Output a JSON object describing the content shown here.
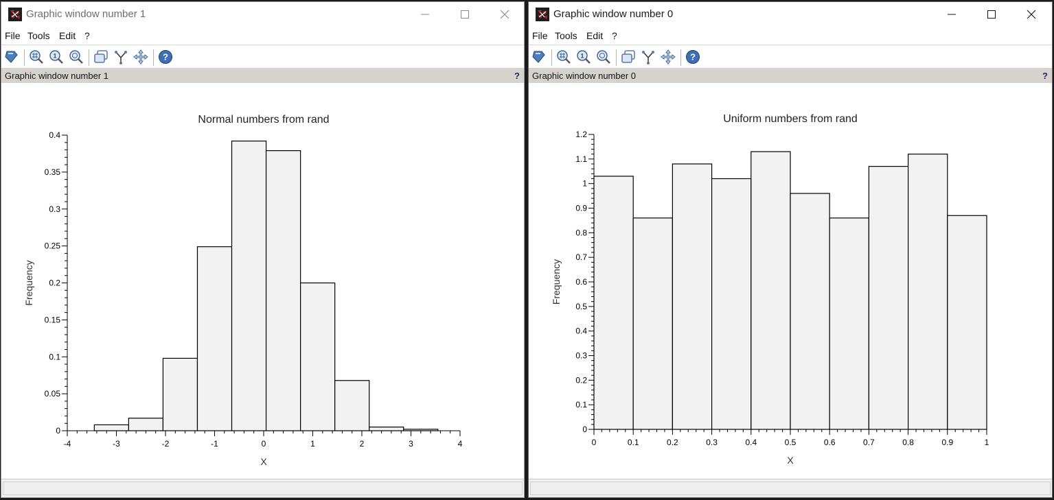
{
  "windows": [
    {
      "id": "w1",
      "title": "Graphic window number 1",
      "menu": [
        "File",
        "Tools",
        "Edit",
        "?"
      ],
      "toolbar_icons": [
        "datatip-icon",
        "zoom-in-icon",
        "zoom-reset-icon",
        "zoom-area-icon",
        "rotate-icon",
        "data-select-icon",
        "pan-icon",
        "help-icon"
      ],
      "info_text": "Graphic window number 1",
      "info_help": "?",
      "chart_data": {
        "type": "bar",
        "title": "Normal numbers from rand",
        "xlabel": "X",
        "ylabel": "Frequency",
        "xlim": [
          -4,
          4
        ],
        "ylim": [
          0,
          0.4
        ],
        "xticks": [
          "-4",
          "-3",
          "-2",
          "-1",
          "0",
          "1",
          "2",
          "3",
          "4"
        ],
        "yticks": [
          "0",
          "0.05",
          "0.1",
          "0.15",
          "0.2",
          "0.25",
          "0.3",
          "0.35",
          "0.4"
        ],
        "bins": [
          {
            "x0": -3.45,
            "x1": -2.75,
            "value": 0.008
          },
          {
            "x0": -2.75,
            "x1": -2.05,
            "value": 0.017
          },
          {
            "x0": -2.05,
            "x1": -1.35,
            "value": 0.098
          },
          {
            "x0": -1.35,
            "x1": -0.65,
            "value": 0.249
          },
          {
            "x0": -0.65,
            "x1": 0.05,
            "value": 0.392
          },
          {
            "x0": 0.05,
            "x1": 0.75,
            "value": 0.379
          },
          {
            "x0": 0.75,
            "x1": 1.45,
            "value": 0.2
          },
          {
            "x0": 1.45,
            "x1": 2.15,
            "value": 0.068
          },
          {
            "x0": 2.15,
            "x1": 2.85,
            "value": 0.005
          },
          {
            "x0": 2.85,
            "x1": 3.55,
            "value": 0.002
          }
        ],
        "grid": false,
        "bar_color": "#f2f2f2"
      }
    },
    {
      "id": "w0",
      "title": "Graphic window number 0",
      "menu": [
        "File",
        "Tools",
        "Edit",
        "?"
      ],
      "toolbar_icons": [
        "datatip-icon",
        "zoom-in-icon",
        "zoom-reset-icon",
        "zoom-area-icon",
        "rotate-icon",
        "data-select-icon",
        "pan-icon",
        "help-icon"
      ],
      "info_text": "Graphic window number 0",
      "info_help": "?",
      "chart_data": {
        "type": "bar",
        "title": "Uniform numbers from rand",
        "xlabel": "X",
        "ylabel": "Frequency",
        "xlim": [
          0,
          1
        ],
        "ylim": [
          0,
          1.2
        ],
        "xticks": [
          "0",
          "0.1",
          "0.2",
          "0.3",
          "0.4",
          "0.5",
          "0.6",
          "0.7",
          "0.8",
          "0.9",
          "1"
        ],
        "yticks": [
          "0",
          "0.1",
          "0.2",
          "0.3",
          "0.4",
          "0.5",
          "0.6",
          "0.7",
          "0.8",
          "0.9",
          "1",
          "1.1",
          "1.2"
        ],
        "bins": [
          {
            "x0": 0.0,
            "x1": 0.1,
            "value": 1.03
          },
          {
            "x0": 0.1,
            "x1": 0.2,
            "value": 0.86
          },
          {
            "x0": 0.2,
            "x1": 0.3,
            "value": 1.08
          },
          {
            "x0": 0.3,
            "x1": 0.4,
            "value": 1.02
          },
          {
            "x0": 0.4,
            "x1": 0.5,
            "value": 1.13
          },
          {
            "x0": 0.5,
            "x1": 0.6,
            "value": 0.96
          },
          {
            "x0": 0.6,
            "x1": 0.7,
            "value": 0.86
          },
          {
            "x0": 0.7,
            "x1": 0.8,
            "value": 1.07
          },
          {
            "x0": 0.8,
            "x1": 0.9,
            "value": 1.12
          },
          {
            "x0": 0.9,
            "x1": 1.0,
            "value": 0.87
          }
        ],
        "grid": false,
        "bar_color": "#f2f2f2"
      }
    }
  ]
}
